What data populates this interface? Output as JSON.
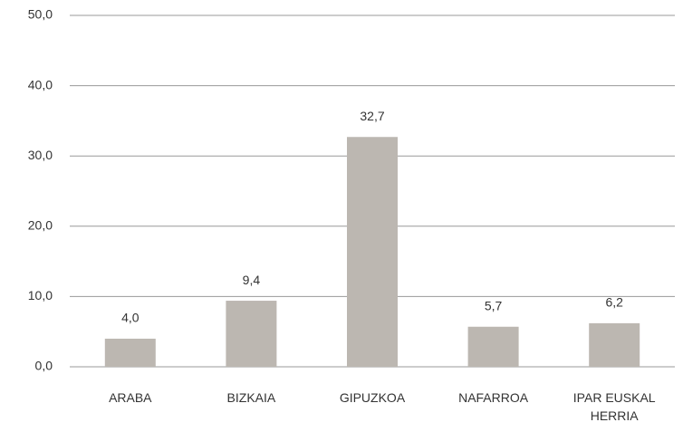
{
  "chart_data": {
    "type": "bar",
    "categories": [
      "ARABA",
      "BIZKAIA",
      "GIPUZKOA",
      "NAFARROA",
      "IPAR EUSKAL HERRIA"
    ],
    "values": [
      4.0,
      9.4,
      32.7,
      5.7,
      6.2
    ],
    "value_labels": [
      "4,0",
      "9,4",
      "32,7",
      "5,7",
      "6,2"
    ],
    "color": "#bcb7b1",
    "ylim": [
      0,
      50
    ],
    "yticks": [
      {
        "value": 0,
        "label": "0,0"
      },
      {
        "value": 10,
        "label": "10,0"
      },
      {
        "value": 20,
        "label": "20,0"
      },
      {
        "value": 30,
        "label": "30,0"
      },
      {
        "value": 40,
        "label": "40,0"
      },
      {
        "value": 50,
        "label": "50,0"
      }
    ],
    "grid": true
  }
}
